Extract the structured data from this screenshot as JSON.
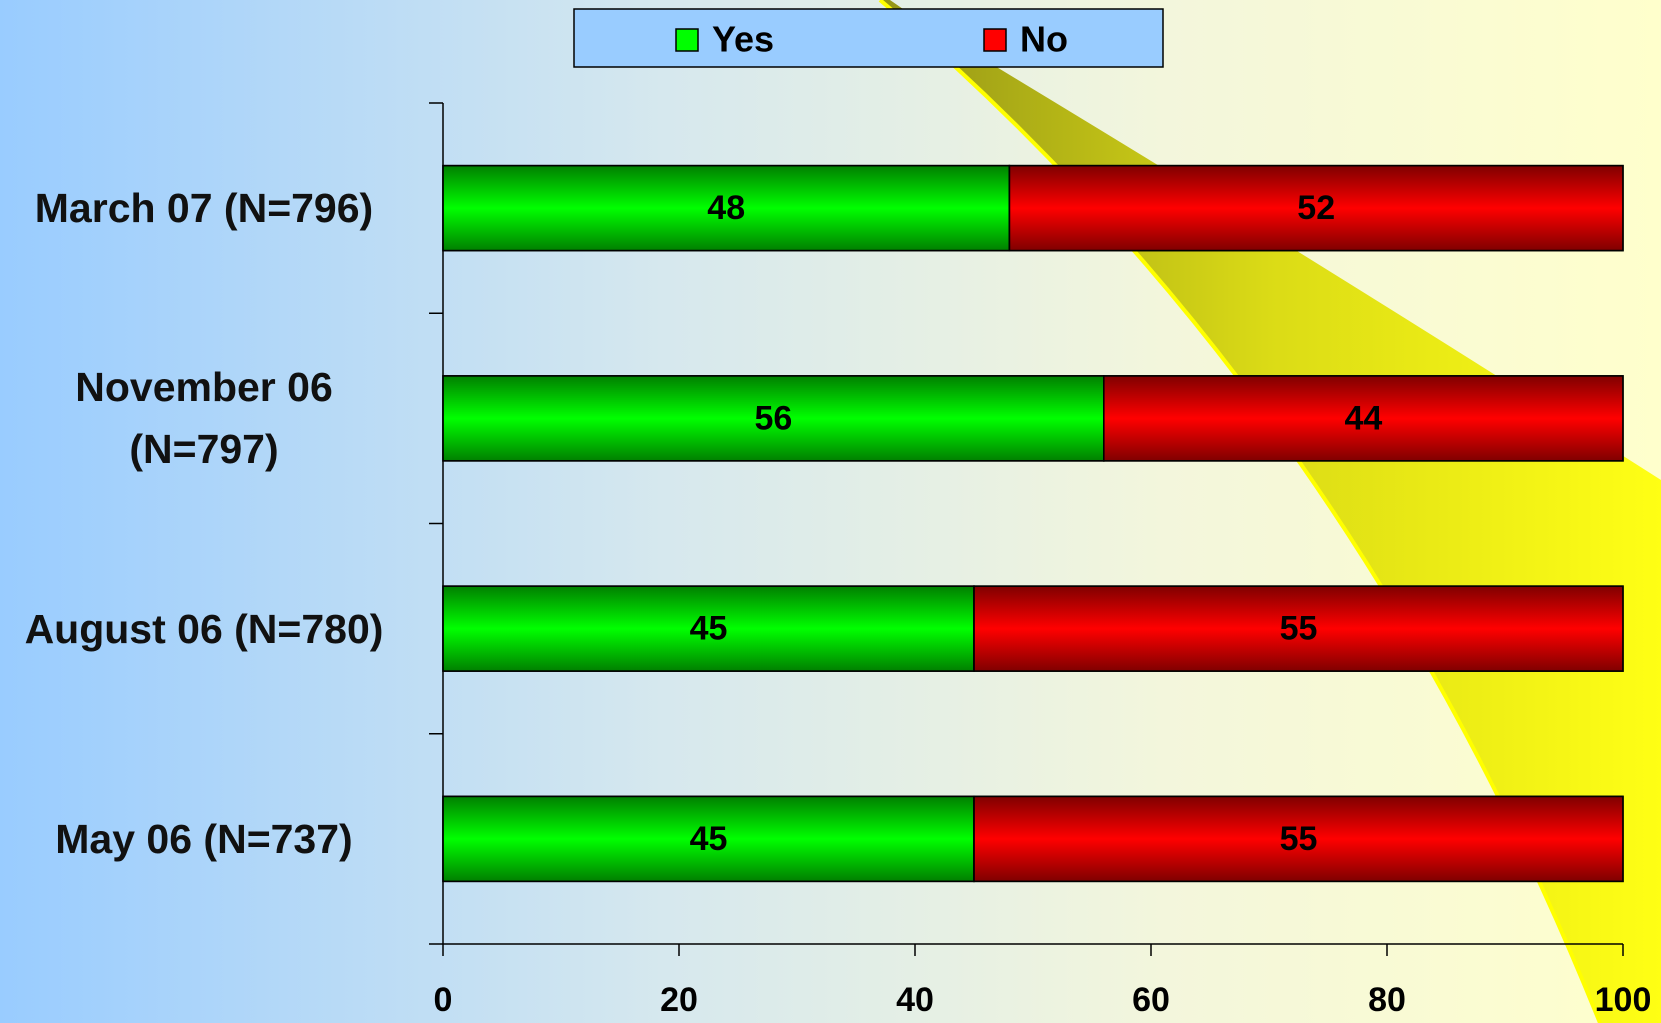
{
  "chart_data": {
    "type": "stacked_bar_horizontal",
    "categories": [
      "March 07 (N=796)",
      "November 06 (N=797)",
      "August 06 (N=780)",
      "May 06 (N=737)"
    ],
    "series": [
      {
        "name": "Yes",
        "color": "#00ff00",
        "values": [
          48,
          56,
          45,
          45
        ]
      },
      {
        "name": "No",
        "color": "#ff0000",
        "values": [
          52,
          44,
          55,
          55
        ]
      }
    ],
    "xlim": [
      0,
      100
    ],
    "xticks": [
      0,
      20,
      40,
      60,
      80,
      100
    ],
    "legend": "top"
  }
}
